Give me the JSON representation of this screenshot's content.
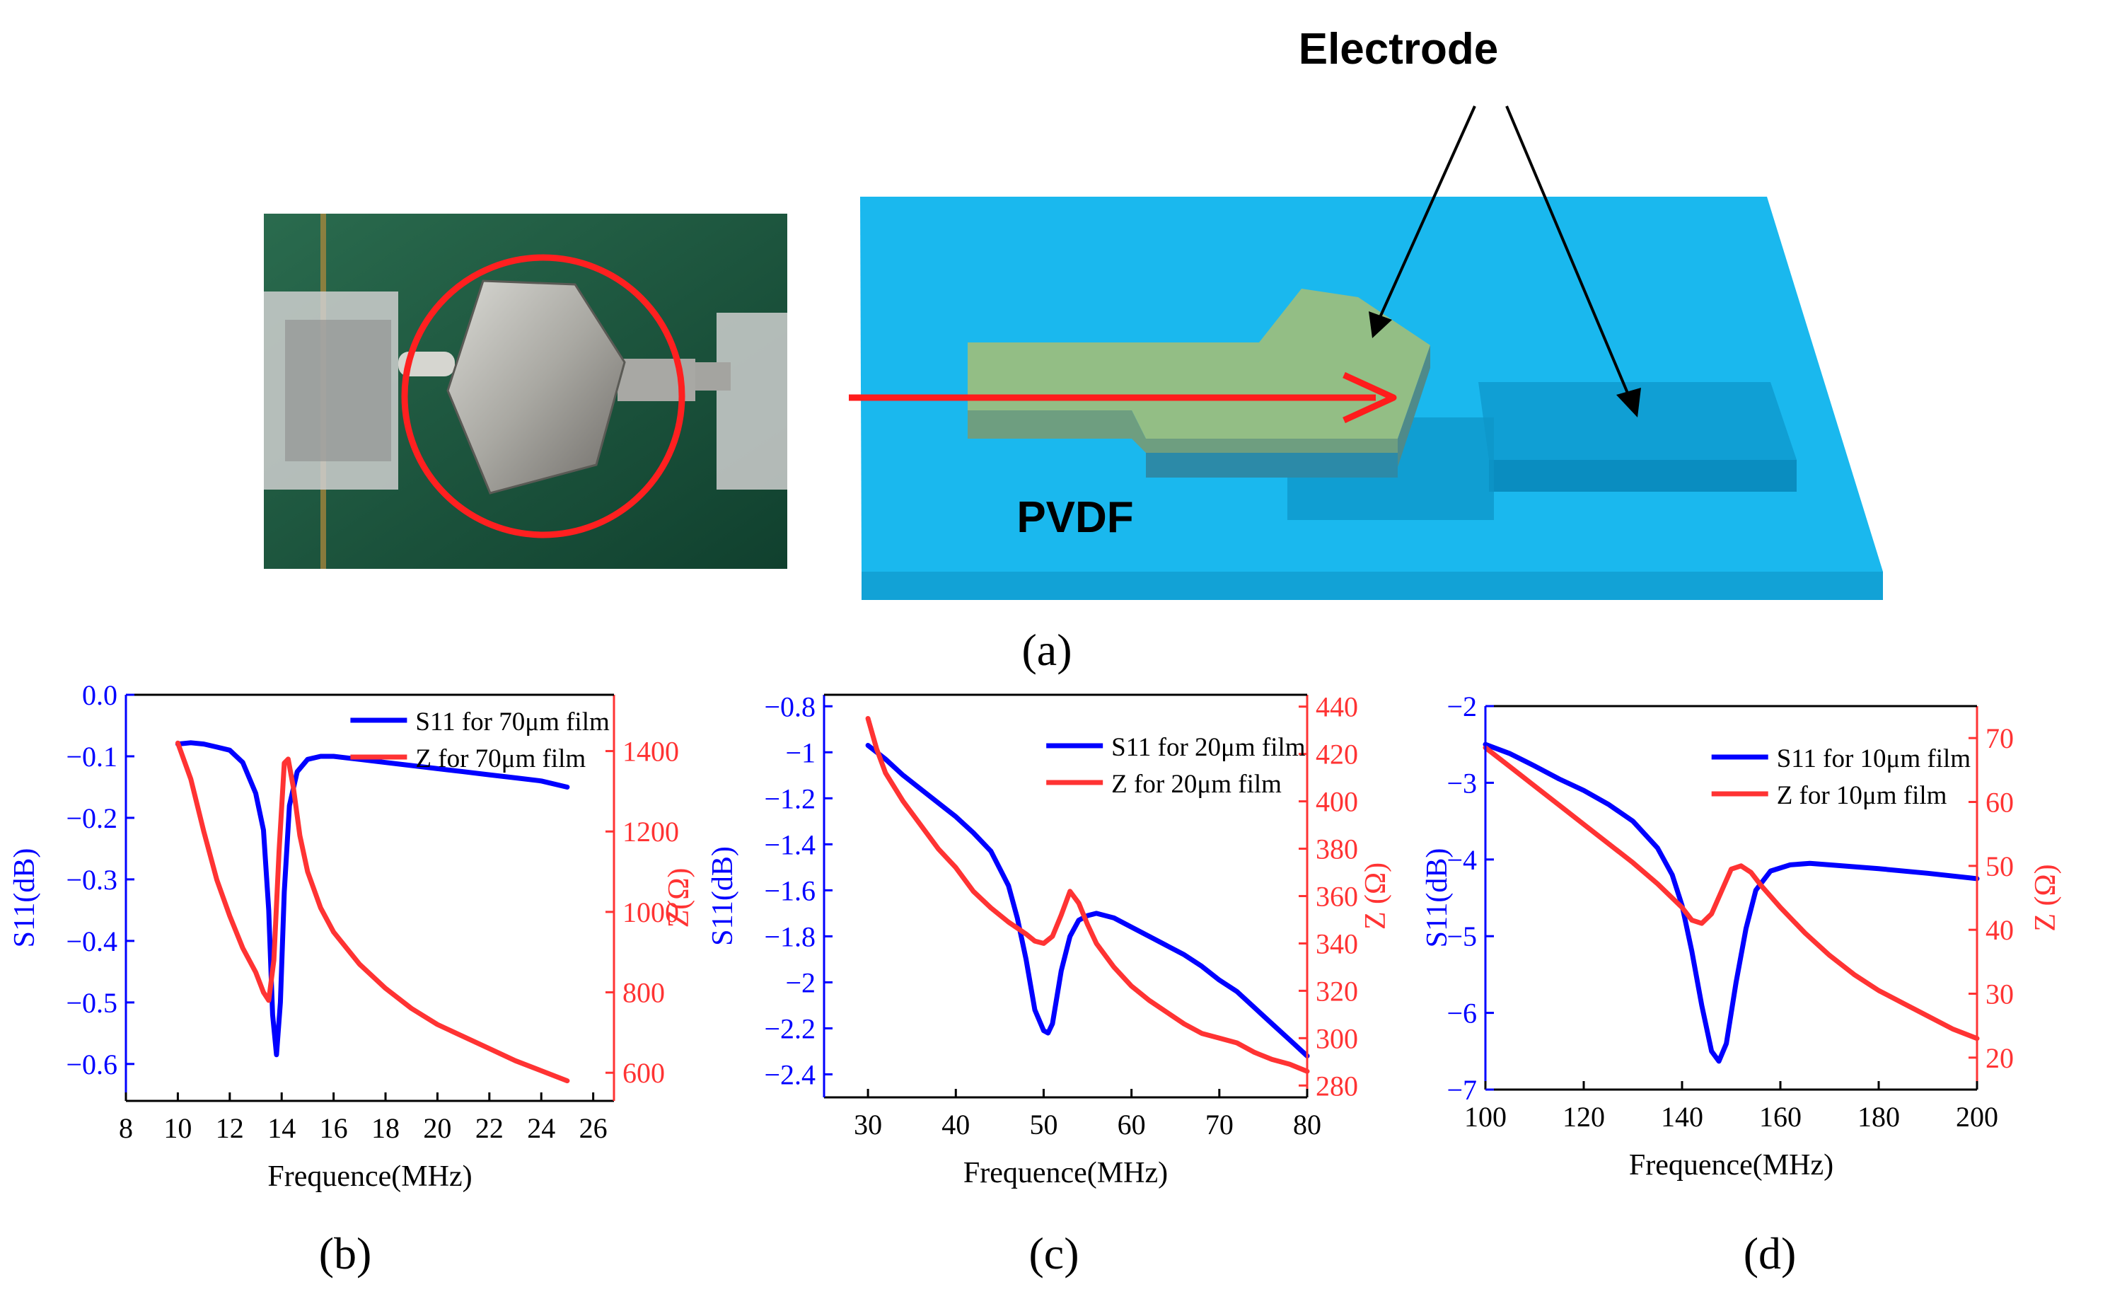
{
  "figure": {
    "panel_a": {
      "caption": "(a)",
      "electrode_label": "Electrode",
      "substrate_label": "PVDF"
    },
    "colors": {
      "s11": "#0000ff",
      "z": "#ff3333",
      "pvdf": "#18b8ec",
      "electrode": "#8fbf85"
    }
  },
  "chart_data": [
    {
      "id": "b",
      "caption": "(b)",
      "type": "line",
      "xlabel": "Frequence(MHz)",
      "ylabel_left": "S11(dB)",
      "ylabel_right": "Z(Ω)",
      "xlim": [
        8,
        26.8
      ],
      "ylim_left": [
        -0.66,
        0.0
      ],
      "ylim_right": [
        530,
        1540
      ],
      "xticks": [
        8,
        10,
        12,
        14,
        16,
        18,
        20,
        22,
        24,
        26
      ],
      "yticks_left": [
        0.0,
        -0.1,
        -0.2,
        -0.3,
        -0.4,
        -0.5,
        -0.6
      ],
      "yticks_right": [
        600,
        800,
        1000,
        1200,
        1400
      ],
      "legend": {
        "position": "top-right"
      },
      "series": [
        {
          "name": "S11 for 70μm film",
          "axis": "left",
          "x": [
            10,
            10.5,
            11,
            11.5,
            12,
            12.5,
            13,
            13.3,
            13.5,
            13.65,
            13.8,
            13.95,
            14.1,
            14.3,
            14.6,
            15,
            15.5,
            16,
            17,
            18,
            19,
            20,
            21,
            22,
            23,
            24,
            25
          ],
          "y": [
            -0.08,
            -0.078,
            -0.08,
            -0.085,
            -0.09,
            -0.11,
            -0.16,
            -0.22,
            -0.35,
            -0.52,
            -0.585,
            -0.5,
            -0.32,
            -0.18,
            -0.125,
            -0.105,
            -0.1,
            -0.1,
            -0.105,
            -0.11,
            -0.115,
            -0.12,
            -0.125,
            -0.13,
            -0.135,
            -0.14,
            -0.15
          ]
        },
        {
          "name": "Z for 70μm film",
          "axis": "right",
          "x": [
            10,
            10.5,
            11,
            11.5,
            12,
            12.5,
            13,
            13.3,
            13.5,
            13.7,
            13.9,
            14.1,
            14.25,
            14.45,
            14.7,
            15,
            15.5,
            16,
            17,
            18,
            19,
            20,
            21,
            22,
            23,
            24,
            25
          ],
          "y": [
            1420,
            1330,
            1200,
            1080,
            990,
            910,
            850,
            800,
            780,
            880,
            1150,
            1370,
            1380,
            1310,
            1190,
            1100,
            1010,
            950,
            870,
            810,
            760,
            720,
            690,
            660,
            630,
            605,
            580
          ]
        }
      ]
    },
    {
      "id": "c",
      "caption": "(c)",
      "type": "line",
      "xlabel": "Frequence(MHz)",
      "ylabel_left": "S11(dB)",
      "ylabel_right": "Z (Ω)",
      "xlim": [
        25,
        80
      ],
      "ylim_left": [
        -2.5,
        -0.75
      ],
      "ylim_right": [
        275,
        445
      ],
      "xticks": [
        30,
        40,
        50,
        60,
        70,
        80
      ],
      "yticks_left": [
        -0.8,
        -1.0,
        -1.2,
        -1.4,
        -1.6,
        -1.8,
        -2.0,
        -2.2,
        -2.4
      ],
      "yticks_right": [
        280,
        300,
        320,
        340,
        360,
        380,
        400,
        420,
        440
      ],
      "legend": {
        "position": "top-right"
      },
      "series": [
        {
          "name": "S11 for 20μm film",
          "axis": "left",
          "x": [
            30,
            32,
            34,
            36,
            38,
            40,
            42,
            44,
            46,
            47,
            48,
            49,
            50,
            50.5,
            51,
            52,
            53,
            54,
            55,
            56,
            58,
            60,
            62,
            64,
            66,
            68,
            70,
            72,
            74,
            76,
            78,
            80
          ],
          "y": [
            -0.97,
            -1.03,
            -1.1,
            -1.16,
            -1.22,
            -1.28,
            -1.35,
            -1.43,
            -1.58,
            -1.72,
            -1.9,
            -2.12,
            -2.21,
            -2.22,
            -2.18,
            -1.95,
            -1.8,
            -1.73,
            -1.71,
            -1.7,
            -1.72,
            -1.76,
            -1.8,
            -1.84,
            -1.88,
            -1.93,
            -1.99,
            -2.04,
            -2.11,
            -2.18,
            -2.25,
            -2.32
          ]
        },
        {
          "name": "Z for 20μm film",
          "axis": "right",
          "x": [
            30,
            31,
            32,
            34,
            36,
            38,
            40,
            42,
            44,
            46,
            48,
            49,
            50,
            51,
            52,
            53,
            54,
            55,
            56,
            58,
            60,
            62,
            64,
            66,
            68,
            70,
            72,
            74,
            76,
            78,
            80
          ],
          "y": [
            435,
            422,
            412,
            400,
            390,
            380,
            372,
            362,
            355,
            349,
            344,
            341,
            340,
            343,
            352,
            362,
            357,
            348,
            340,
            330,
            322,
            316,
            311,
            306,
            302,
            300,
            298,
            294,
            291,
            289,
            286
          ]
        }
      ]
    },
    {
      "id": "d",
      "caption": "(d)",
      "type": "line",
      "xlabel": "Frequence(MHz)",
      "ylabel_left": "S11(dB)",
      "ylabel_right": "Z (Ω)",
      "xlim": [
        100,
        200
      ],
      "ylim_left": [
        -7.0,
        -2.0
      ],
      "ylim_right": [
        15,
        75
      ],
      "xticks": [
        100,
        120,
        140,
        160,
        180,
        200
      ],
      "yticks_left": [
        -2,
        -3,
        -4,
        -5,
        -6,
        -7
      ],
      "yticks_right": [
        20,
        30,
        40,
        50,
        60,
        70
      ],
      "legend": {
        "position": "top-right"
      },
      "series": [
        {
          "name": "S11 for 10μm film",
          "axis": "left",
          "x": [
            100,
            105,
            110,
            115,
            120,
            125,
            130,
            135,
            138,
            140,
            142,
            144,
            146,
            147.5,
            149,
            151,
            153,
            155,
            158,
            162,
            166,
            170,
            180,
            190,
            200
          ],
          "y": [
            -2.5,
            -2.62,
            -2.78,
            -2.95,
            -3.1,
            -3.28,
            -3.5,
            -3.85,
            -4.2,
            -4.6,
            -5.2,
            -5.9,
            -6.5,
            -6.63,
            -6.4,
            -5.6,
            -4.9,
            -4.4,
            -4.15,
            -4.07,
            -4.05,
            -4.07,
            -4.12,
            -4.18,
            -4.25
          ]
        },
        {
          "name": "Z for 10μm film",
          "axis": "right",
          "x": [
            100,
            105,
            110,
            115,
            120,
            125,
            130,
            135,
            140,
            142,
            144,
            146,
            148,
            150,
            152,
            154,
            156,
            160,
            165,
            170,
            175,
            180,
            185,
            190,
            195,
            200
          ],
          "y": [
            68.5,
            65.5,
            62.5,
            59.5,
            56.5,
            53.5,
            50.5,
            47.2,
            43.5,
            41.5,
            41,
            42.5,
            46,
            49.5,
            50,
            49,
            47,
            43.5,
            39.5,
            36,
            33,
            30.5,
            28.5,
            26.5,
            24.5,
            23
          ]
        }
      ]
    }
  ]
}
